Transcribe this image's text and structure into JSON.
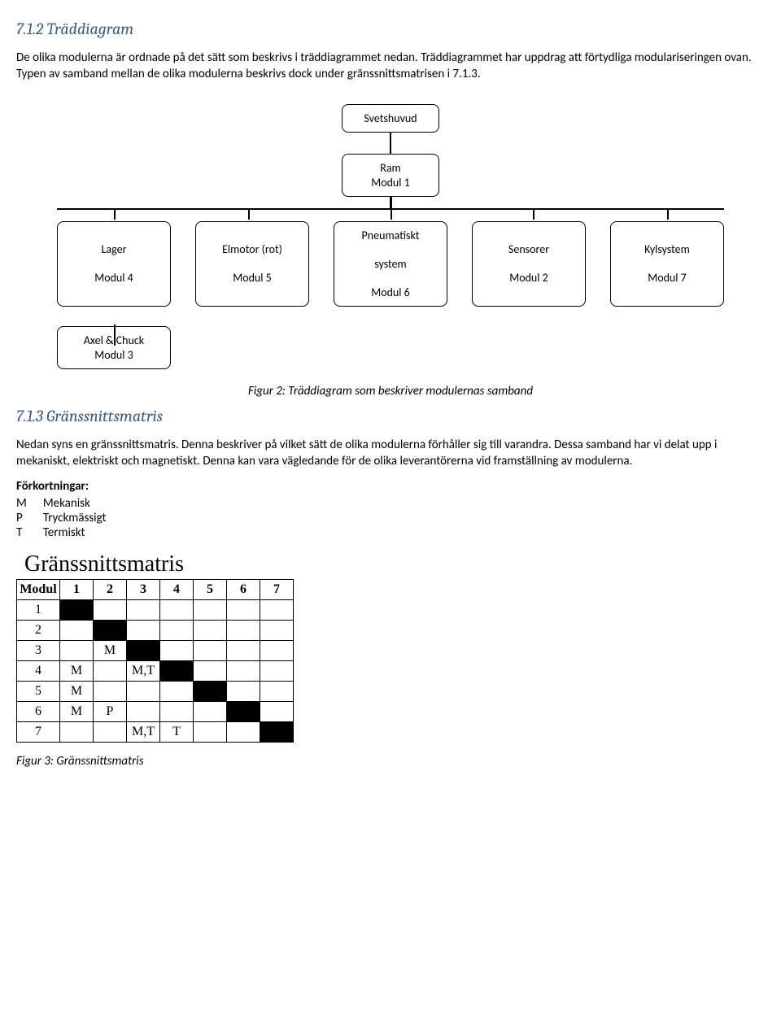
{
  "section1": {
    "heading": "7.1.2 Träddiagram",
    "para": "De olika modulerna är ordnade på det sätt som beskrivs i träddiagrammet nedan. Träddiagrammet har uppdrag att förtydliga modulariseringen ovan. Typen av samband mellan de olika modulerna beskrivs dock under gränssnittsmatrisen i 7.1.3."
  },
  "tree": {
    "type": "tree",
    "background_color": "#ffffff",
    "node_border_color": "#000000",
    "node_border_radius": 8,
    "node_border_width": 1.5,
    "font_size": 14,
    "root": {
      "lines": [
        "Svetshuvud"
      ]
    },
    "level2": {
      "lines": [
        "Ram",
        "Modul 1"
      ]
    },
    "level3": [
      {
        "lines": [
          "Lager",
          "Modul 4"
        ]
      },
      {
        "lines": [
          "Elmotor (rot)",
          "Modul 5"
        ]
      },
      {
        "lines": [
          "Pneumatiskt",
          "system",
          "Modul 6"
        ]
      },
      {
        "lines": [
          "Sensorer",
          "Modul 2"
        ]
      },
      {
        "lines": [
          "Kylsystem",
          "Modul 7"
        ]
      }
    ],
    "level4": {
      "lines": [
        "Axel & Chuck",
        "Modul 3"
      ]
    },
    "caption": "Figur 2: Träddiagram som beskriver modulernas samband"
  },
  "section2": {
    "heading": "7.1.3 Gränssnittsmatris",
    "para": "Nedan syns en gränssnittsmatris. Denna beskriver på vilket sätt de olika modulerna förhåller sig till varandra. Dessa samband har vi delat upp i mekaniskt, elektriskt och magnetiskt. Denna kan vara vägledande för de olika leverantörerna vid framställning av modulerna.",
    "abbrev_title": "Förkortningar:",
    "abbrev": [
      {
        "k": "M",
        "v": "Mekanisk"
      },
      {
        "k": "P",
        "v": "Tryckmässigt"
      },
      {
        "k": "T",
        "v": "Termiskt"
      }
    ]
  },
  "matrix": {
    "type": "table",
    "title": "Gränssnittsmatris",
    "font_family": "Times New Roman",
    "title_fontsize": 28,
    "cell_fontsize": 16,
    "border_color": "#000000",
    "black_fill": "#000000",
    "columns": [
      "Modul",
      "1",
      "2",
      "3",
      "4",
      "5",
      "6",
      "7"
    ],
    "rows": [
      {
        "label": "1",
        "cells": [
          "#",
          "",
          "",
          "",
          "",
          "",
          ""
        ]
      },
      {
        "label": "2",
        "cells": [
          "",
          "#",
          "",
          "",
          "",
          "",
          ""
        ]
      },
      {
        "label": "3",
        "cells": [
          "",
          "M",
          "#",
          "",
          "",
          "",
          ""
        ]
      },
      {
        "label": "4",
        "cells": [
          "M",
          "",
          "M,T",
          "#",
          "",
          "",
          ""
        ]
      },
      {
        "label": "5",
        "cells": [
          "M",
          "",
          "",
          "",
          "#",
          "",
          ""
        ]
      },
      {
        "label": "6",
        "cells": [
          "M",
          "P",
          "",
          "",
          "",
          "#",
          ""
        ]
      },
      {
        "label": "7",
        "cells": [
          "",
          "",
          "M,T",
          "T",
          "",
          "",
          "#"
        ]
      }
    ],
    "caption": "Figur 3: Gränssnittsmatris"
  }
}
